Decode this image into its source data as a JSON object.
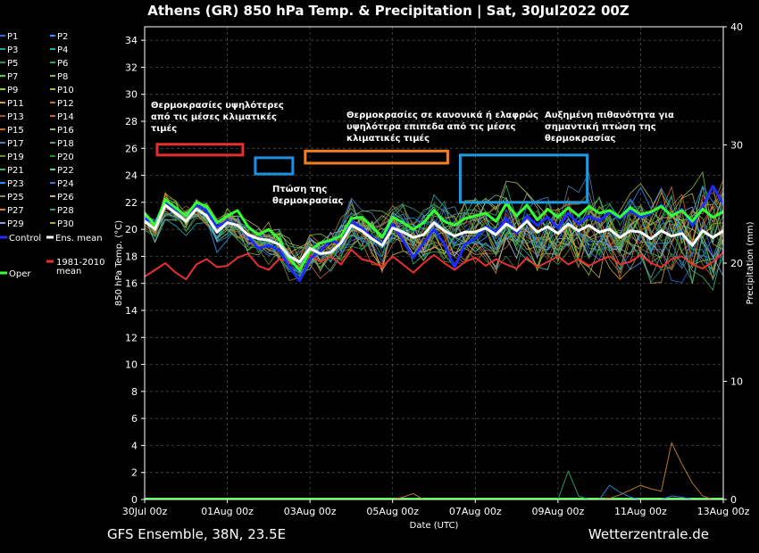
{
  "chart_data": {
    "type": "line",
    "title": "Athens  (GR)  850 hPa Temp. & Precipitation | Sat, 30Jul2022 00Z",
    "xlabel": "Date (UTC)",
    "ylabel": "850 hPa Temp. (°C)",
    "ylabel_right": "Precipitation (mm)",
    "ylim": [
      0,
      35
    ],
    "ylim_right": [
      0,
      40
    ],
    "y_ticks": [
      "0",
      "2",
      "4",
      "6",
      "8",
      "10",
      "12",
      "14",
      "16",
      "18",
      "20",
      "22",
      "24",
      "26",
      "28",
      "30",
      "32",
      "34"
    ],
    "y_ticks_right": [
      "0",
      "10",
      "20",
      "30",
      "40"
    ],
    "x_ticks": [
      "30Jul 00z",
      "01Aug 00z",
      "03Aug 00z",
      "05Aug 00z",
      "07Aug 00z",
      "09Aug 00z",
      "11Aug 00z",
      "13Aug 00z"
    ],
    "x_range_hours": [
      0,
      336
    ],
    "step_hours": 6,
    "grid": true,
    "legend_position": "left",
    "colors": {
      "background": "#000000",
      "ens_mean": "#ffffff",
      "control": "#1e2cff",
      "oper": "#33ff33",
      "climate_mean": "#e83030"
    },
    "legend": [
      "P1",
      "P2",
      "P3",
      "P4",
      "P5",
      "P6",
      "P7",
      "P8",
      "P9",
      "P10",
      "P11",
      "P12",
      "P13",
      "P14",
      "P15",
      "P16",
      "P17",
      "P18",
      "P19",
      "P20",
      "P21",
      "P22",
      "P23",
      "P24",
      "P25",
      "P26",
      "P27",
      "P28",
      "P29",
      "P30",
      "Control",
      "Ens. mean",
      "Oper",
      "1981-2010 mean"
    ],
    "series": [
      {
        "name": "Ens. mean",
        "values": [
          20.6,
          20.0,
          21.8,
          21.2,
          20.6,
          21.5,
          21.0,
          19.8,
          20.5,
          20.3,
          19.6,
          19.3,
          19.2,
          18.9,
          18.0,
          17.6,
          18.6,
          18.2,
          18.3,
          19.0,
          20.3,
          19.9,
          19.3,
          18.8,
          20.1,
          19.8,
          19.4,
          19.6,
          20.5,
          19.9,
          19.5,
          19.8,
          19.8,
          20.1,
          19.6,
          20.4,
          19.9,
          20.6,
          19.8,
          20.2,
          19.7,
          20.4,
          19.9,
          20.3,
          19.8,
          20.0,
          19.4,
          19.9,
          19.8,
          19.3,
          19.9,
          19.5,
          19.7,
          18.8,
          19.9,
          19.4,
          19.9
        ]
      },
      {
        "name": "Control",
        "values": [
          20.8,
          20.5,
          22.0,
          21.5,
          21.0,
          21.8,
          21.4,
          20.2,
          20.6,
          20.3,
          19.5,
          18.6,
          18.8,
          18.5,
          17.2,
          16.2,
          17.8,
          18.4,
          19.2,
          18.9,
          20.6,
          20.1,
          19.4,
          18.9,
          20.4,
          19.2,
          17.9,
          19.0,
          20.0,
          18.9,
          17.2,
          18.9,
          19.3,
          20.2,
          19.8,
          20.8,
          19.7,
          21.0,
          20.3,
          20.9,
          20.1,
          21.2,
          20.4,
          21.0,
          20.6,
          21.3,
          20.8,
          21.4,
          20.9,
          21.2,
          21.8,
          21.0,
          21.5,
          20.3,
          21.7,
          23.2,
          21.9
        ]
      },
      {
        "name": "Oper",
        "values": [
          21.2,
          20.3,
          22.2,
          21.6,
          21.0,
          22.0,
          21.7,
          20.5,
          21.0,
          21.4,
          20.2,
          19.6,
          20.0,
          19.3,
          17.8,
          17.0,
          18.4,
          19.0,
          19.2,
          19.5,
          20.8,
          20.9,
          20.2,
          19.4,
          20.9,
          20.5,
          20.0,
          20.5,
          21.4,
          20.6,
          20.3,
          20.8,
          21.0,
          21.2,
          20.6,
          21.9,
          21.0,
          21.8,
          20.7,
          21.5,
          20.9,
          21.6,
          21.0,
          21.7,
          21.2,
          21.4,
          20.9,
          21.6,
          21.1,
          21.3,
          21.7,
          21.0,
          21.4,
          20.6,
          21.5,
          20.9,
          21.3
        ]
      },
      {
        "name": "1981-2010 mean",
        "values": [
          16.5,
          17.0,
          17.5,
          16.8,
          16.3,
          17.4,
          17.8,
          17.2,
          17.3,
          17.9,
          18.2,
          17.3,
          17.0,
          17.8,
          17.6,
          17.2,
          18.1,
          17.6,
          18.0,
          17.4,
          18.5,
          17.8,
          17.6,
          17.2,
          18.0,
          17.4,
          16.8,
          17.5,
          18.1,
          17.5,
          17.0,
          17.6,
          17.9,
          17.3,
          17.8,
          17.4,
          17.1,
          17.9,
          17.2,
          17.6,
          18.0,
          17.4,
          17.8,
          17.3,
          17.7,
          18.0,
          17.4,
          17.6,
          18.1,
          17.5,
          17.2,
          17.8,
          18.0,
          17.4,
          17.1,
          17.6,
          18.3
        ]
      }
    ],
    "precipitation": [
      {
        "name": "P14",
        "values": [
          0,
          0,
          0,
          0,
          0,
          0,
          0,
          0,
          0,
          0,
          0,
          0,
          0,
          0,
          0,
          0,
          0,
          0,
          0,
          0,
          0,
          0,
          0,
          0,
          0,
          0.2,
          0.5,
          0,
          0,
          0,
          0,
          0,
          0,
          0,
          0,
          0,
          0,
          0,
          0,
          0,
          0,
          0,
          0,
          0,
          0,
          0.1,
          0.4,
          0.8,
          1.2,
          0.9,
          0.7,
          4.8,
          3.0,
          1.4,
          0.3,
          0,
          0
        ]
      },
      {
        "name": "P26",
        "values": [
          0,
          0,
          0,
          0,
          0,
          0,
          0,
          0,
          0,
          0,
          0,
          0,
          0,
          0,
          0,
          0,
          0,
          0,
          0,
          0,
          0,
          0,
          0,
          0,
          0,
          0,
          0,
          0,
          0,
          0,
          0,
          0,
          0,
          0,
          0,
          0,
          0,
          0,
          0,
          0,
          0,
          2.4,
          0.3,
          0,
          0,
          0,
          0,
          0,
          0,
          0,
          0,
          0,
          0,
          0,
          0,
          0,
          0
        ]
      },
      {
        "name": "P22",
        "values": [
          0,
          0,
          0,
          0,
          0,
          0,
          0,
          0,
          0,
          0,
          0,
          0,
          0,
          0,
          0,
          0,
          0,
          0,
          0,
          0,
          0,
          0,
          0,
          0,
          0,
          0,
          0,
          0,
          0,
          0,
          0,
          0,
          0,
          0,
          0,
          0,
          0,
          0,
          0,
          0,
          0,
          0,
          0,
          0,
          0,
          1.2,
          0.6,
          0.2,
          0,
          0,
          0,
          0.3,
          0.2,
          0,
          0,
          0,
          0
        ]
      }
    ],
    "annotations": [
      {
        "lines": [
          "Θερμοκρασίες υψηλότερες",
          "από τις μέσες κλιματικές",
          "τιμές"
        ],
        "color": "#e62e2e",
        "box_hours": [
          0,
          57
        ],
        "box_y": [
          25.5,
          26.3
        ]
      },
      {
        "lines": [
          "Πτώση της",
          "θερμοκρασίας"
        ],
        "color": "#1e90e0",
        "box_hours": [
          57,
          86
        ],
        "box_y": [
          24.1,
          25.3
        ]
      },
      {
        "lines": [
          "Θερμοκρασίες σε κανονικά ή ελαφρώς",
          "υψηλότερα επιπεδα από τις μέσες",
          "κλιματικές τιμές"
        ],
        "color": "#f08020",
        "box_hours": [
          86,
          176
        ],
        "box_y": [
          24.9,
          25.8
        ]
      },
      {
        "lines": [
          "Αυξημένη πιθανότητα για",
          "σημαντική πτώση της",
          "θερμοκρασίας"
        ],
        "color": "#1e9be0",
        "box_hours": [
          176,
          257
        ],
        "box_y": [
          22.0,
          25.5
        ]
      }
    ],
    "footer_left": "GFS Ensemble, 38N, 23.5E",
    "footer_right": "Wetterzentrale.de"
  }
}
